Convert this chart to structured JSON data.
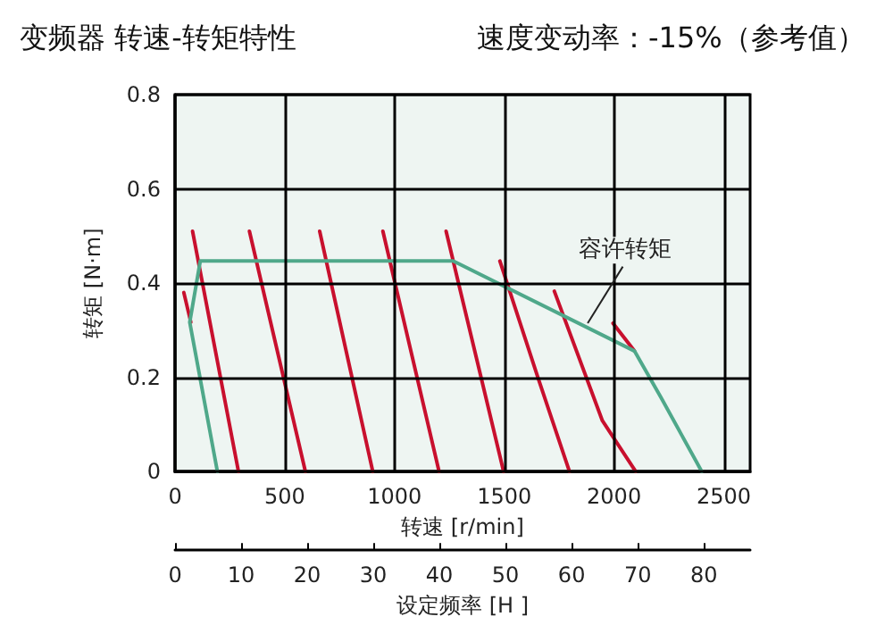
{
  "chart_data": {
    "type": "line",
    "title": "变频器 转速-转矩特性",
    "subtitle": "速度变动率：-15%（参考值）",
    "xlabel": "转速 [r/min]",
    "ylabel": "转矩 [N·m]",
    "x2label": "设定频率 [H ]",
    "xlim": [
      0,
      2620
    ],
    "xticks": [
      0,
      500,
      1000,
      1500,
      2000,
      2500
    ],
    "ylim": [
      0,
      0.8
    ],
    "yticks": [
      0,
      0.2,
      0.4,
      0.6,
      0.8
    ],
    "x2lim": [
      0,
      87
    ],
    "x2ticks": [
      0,
      10,
      20,
      30,
      40,
      50,
      60,
      70,
      80
    ],
    "grid": true,
    "marker": "none",
    "line_style": "solid",
    "series": [
      {
        "color": "#c8102e",
        "x": [
          40,
          72
        ],
        "values": [
          0.38,
          0.317
        ]
      },
      {
        "color": "#c8102e",
        "x": [
          80,
          289
        ],
        "values": [
          0.51,
          0
        ]
      },
      {
        "color": "#c8102e",
        "x": [
          339,
          594
        ],
        "values": [
          0.51,
          0
        ]
      },
      {
        "color": "#c8102e",
        "x": [
          659,
          901
        ],
        "values": [
          0.51,
          0
        ]
      },
      {
        "color": "#c8102e",
        "x": [
          947,
          1203
        ],
        "values": [
          0.51,
          0
        ]
      },
      {
        "color": "#c8102e",
        "x": [
          1235,
          1497
        ],
        "values": [
          0.51,
          0
        ]
      },
      {
        "color": "#c8102e",
        "x": [
          1480,
          1653,
          1797
        ],
        "values": [
          0.447,
          0.2,
          0
        ]
      },
      {
        "color": "#c8102e",
        "x": [
          1728,
          1947,
          2099
        ],
        "values": [
          0.383,
          0.108,
          0
        ]
      },
      {
        "color": "#c8102e",
        "x": [
          1995,
          2093
        ],
        "values": [
          0.315,
          0.256
        ]
      },
      {
        "color": "#4fa88a",
        "x": [
          193,
          67,
          115,
          1267,
          2093,
          2213,
          2400
        ],
        "values": [
          0,
          0.317,
          0.447,
          0.447,
          0.256,
          0.158,
          0
        ]
      }
    ],
    "annotations": [
      {
        "text": "容许转矩",
        "x": 1880,
        "y": 0.315
      }
    ]
  }
}
